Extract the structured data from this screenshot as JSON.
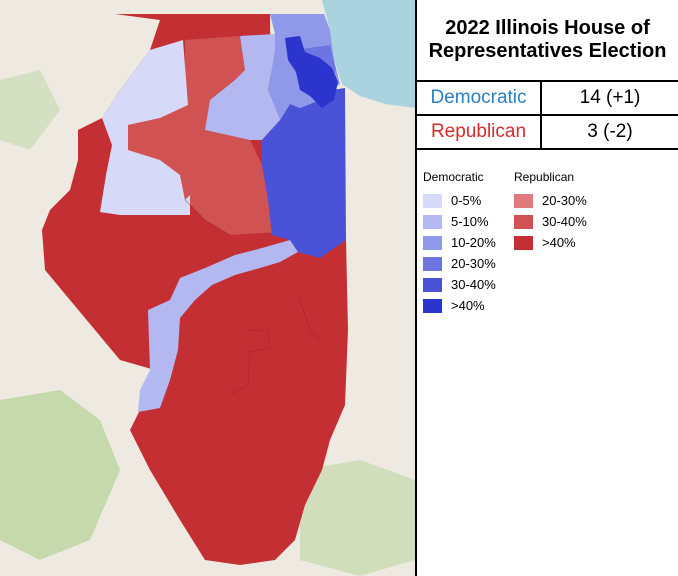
{
  "title": {
    "line1": "2022 Illinois House of",
    "line2": "Representatives Election"
  },
  "results": [
    {
      "party": "Democratic",
      "seats": "14 (+1)",
      "color": "#2a7fc0"
    },
    {
      "party": "Republican",
      "seats": "3 (-2)",
      "color": "#d62b2b"
    }
  ],
  "legend": {
    "democratic": {
      "heading": "Democratic",
      "items": [
        {
          "label": "0-5%",
          "color": "#d6d9f7"
        },
        {
          "label": "5-10%",
          "color": "#b3b9f0"
        },
        {
          "label": "10-20%",
          "color": "#9098ea"
        },
        {
          "label": "20-30%",
          "color": "#6d75e0"
        },
        {
          "label": "30-40%",
          "color": "#4a52d8"
        },
        {
          "label": ">40%",
          "color": "#2b34cc"
        }
      ]
    },
    "republican": {
      "heading": "Republican",
      "items": [
        {
          "label": "20-30%",
          "color": "#e17a7a"
        },
        {
          "label": "30-40%",
          "color": "#d15252"
        },
        {
          "label": ">40%",
          "color": "#c42f34"
        }
      ]
    }
  },
  "map_colors": {
    "lake": "#abd3df",
    "basemap": "#eeeae2",
    "forest": "#c5d9ad"
  }
}
